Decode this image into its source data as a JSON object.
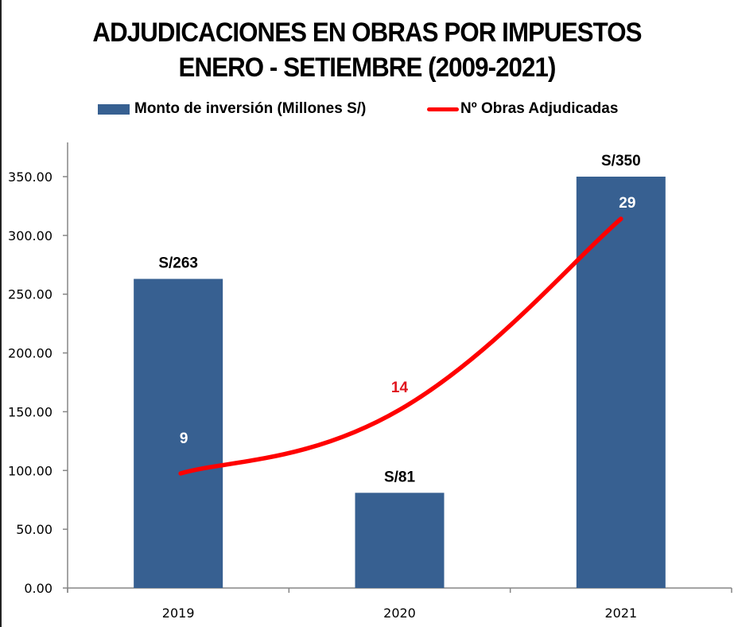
{
  "chart_data": {
    "type": "bar",
    "title": "ADJUDICACIONES EN OBRAS POR IMPUESTOS",
    "subtitle": "ENERO - SETIEMBRE (2009-2021)",
    "legend_position": "top",
    "categories": [
      "2019",
      "2020",
      "2021"
    ],
    "xlabel": "",
    "ylabel": "",
    "ylim": [
      0,
      350
    ],
    "yticks": [
      "0.00",
      "50.00",
      "100.00",
      "150.00",
      "200.00",
      "250.00",
      "300.00",
      "350.00"
    ],
    "ytick_values": [
      0,
      50,
      100,
      150,
      200,
      250,
      300,
      350
    ],
    "grid": false,
    "series": [
      {
        "name": "Monto de inversión (Millones S/)",
        "type": "bar",
        "color": "#376091",
        "values": [
          263,
          81,
          350
        ],
        "data_labels": [
          "S/263",
          "S/81",
          "S/350"
        ]
      },
      {
        "name": "Nº Obras Adjudicadas",
        "type": "line",
        "axis": "secondary",
        "smooth": true,
        "color": "#ff0000",
        "values": [
          9,
          14,
          29
        ],
        "data_labels": [
          "9",
          "14",
          "29"
        ],
        "data_label_colors": [
          "#ffffff",
          "#e0141e",
          "#ffffff"
        ],
        "secondary_ylim": [
          0,
          35
        ]
      }
    ]
  }
}
